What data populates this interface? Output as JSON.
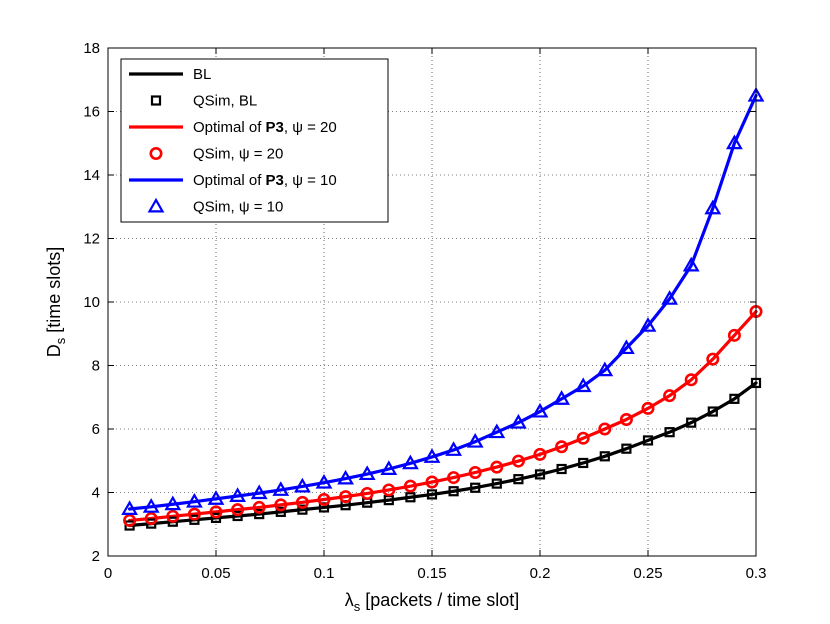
{
  "chart_data": {
    "type": "line",
    "title": "",
    "xlabel_main": "λ",
    "xlabel_sub": "s",
    "xlabel_rest": " [packets / time slot]",
    "ylabel_main": "D",
    "ylabel_sub": "s",
    "ylabel_rest": " [time slots]",
    "xlim": [
      0,
      0.3
    ],
    "ylim": [
      2,
      18
    ],
    "grid": true,
    "legend_position": "top-left",
    "x_ticks": [
      0,
      0.05,
      0.1,
      0.15,
      0.2,
      0.25,
      0.3
    ],
    "x_tick_labels": [
      "0",
      "0.05",
      "0.1",
      "0.15",
      "0.2",
      "0.25",
      "0.3"
    ],
    "y_ticks": [
      2,
      4,
      6,
      8,
      10,
      12,
      14,
      16,
      18
    ],
    "y_tick_labels": [
      "2",
      "4",
      "6",
      "8",
      "10",
      "12",
      "14",
      "16",
      "18"
    ],
    "x": [
      0.01,
      0.02,
      0.03,
      0.04,
      0.05,
      0.06,
      0.07,
      0.08,
      0.09,
      0.1,
      0.11,
      0.12,
      0.13,
      0.14,
      0.15,
      0.16,
      0.17,
      0.18,
      0.19,
      0.2,
      0.21,
      0.22,
      0.23,
      0.24,
      0.25,
      0.26,
      0.27,
      0.28,
      0.29,
      0.3
    ],
    "series": [
      {
        "name": "BL",
        "legend_parts": [
          {
            "text": "BL",
            "bold": false
          }
        ],
        "kind": "line",
        "color": "#000000",
        "values": [
          2.96,
          3.02,
          3.08,
          3.14,
          3.2,
          3.26,
          3.32,
          3.39,
          3.46,
          3.53,
          3.6,
          3.68,
          3.76,
          3.85,
          3.94,
          4.04,
          4.15,
          4.28,
          4.42,
          4.57,
          4.74,
          4.93,
          5.14,
          5.38,
          5.64,
          5.9,
          6.2,
          6.55,
          6.95,
          7.45
        ]
      },
      {
        "name": "QSim, BL",
        "legend_parts": [
          {
            "text": "QSim, BL",
            "bold": false
          }
        ],
        "kind": "marker",
        "marker": "square",
        "color": "#000000",
        "values": [
          2.96,
          3.02,
          3.08,
          3.14,
          3.2,
          3.26,
          3.32,
          3.39,
          3.46,
          3.53,
          3.6,
          3.68,
          3.76,
          3.85,
          3.94,
          4.04,
          4.15,
          4.28,
          4.42,
          4.57,
          4.74,
          4.93,
          5.14,
          5.38,
          5.64,
          5.9,
          6.2,
          6.55,
          6.95,
          7.45
        ]
      },
      {
        "name": "Optimal of P3, ψ = 20",
        "legend_parts": [
          {
            "text": "Optimal of ",
            "bold": false
          },
          {
            "text": "P3",
            "bold": true
          },
          {
            "text": ", ψ = 20",
            "bold": false
          }
        ],
        "kind": "line",
        "color": "#ff0000",
        "values": [
          3.12,
          3.18,
          3.25,
          3.32,
          3.39,
          3.46,
          3.53,
          3.61,
          3.69,
          3.78,
          3.87,
          3.97,
          4.08,
          4.2,
          4.33,
          4.47,
          4.63,
          4.8,
          4.99,
          5.2,
          5.44,
          5.71,
          6.0,
          6.3,
          6.65,
          7.05,
          7.55,
          8.2,
          8.95,
          9.7
        ]
      },
      {
        "name": "QSim, ψ = 20",
        "legend_parts": [
          {
            "text": "QSim, ψ = 20",
            "bold": false
          }
        ],
        "kind": "marker",
        "marker": "circle",
        "color": "#ff0000",
        "values": [
          3.12,
          3.18,
          3.25,
          3.32,
          3.39,
          3.46,
          3.53,
          3.61,
          3.69,
          3.78,
          3.87,
          3.97,
          4.08,
          4.2,
          4.33,
          4.47,
          4.63,
          4.8,
          4.99,
          5.2,
          5.44,
          5.71,
          6.0,
          6.3,
          6.65,
          7.05,
          7.55,
          8.2,
          8.95,
          9.7
        ]
      },
      {
        "name": "Optimal of P3, ψ = 10",
        "legend_parts": [
          {
            "text": "Optimal of ",
            "bold": false
          },
          {
            "text": "P3",
            "bold": true
          },
          {
            "text": ", ψ = 10",
            "bold": false
          }
        ],
        "kind": "line",
        "color": "#0000ff",
        "values": [
          3.48,
          3.55,
          3.63,
          3.71,
          3.8,
          3.89,
          3.98,
          4.08,
          4.19,
          4.31,
          4.44,
          4.58,
          4.74,
          4.92,
          5.12,
          5.34,
          5.6,
          5.9,
          6.2,
          6.55,
          6.95,
          7.35,
          7.85,
          8.55,
          9.25,
          10.1,
          11.15,
          12.95,
          15.0,
          16.5
        ]
      },
      {
        "name": "QSim, ψ = 10",
        "legend_parts": [
          {
            "text": "QSim, ψ = 10",
            "bold": false
          }
        ],
        "kind": "marker",
        "marker": "triangle",
        "color": "#0000ff",
        "values": [
          3.48,
          3.55,
          3.63,
          3.71,
          3.8,
          3.89,
          3.98,
          4.08,
          4.19,
          4.31,
          4.44,
          4.58,
          4.74,
          4.92,
          5.12,
          5.34,
          5.6,
          5.9,
          6.2,
          6.55,
          6.95,
          7.35,
          7.85,
          8.55,
          9.25,
          10.1,
          11.15,
          12.95,
          15.0,
          16.5
        ]
      }
    ]
  }
}
